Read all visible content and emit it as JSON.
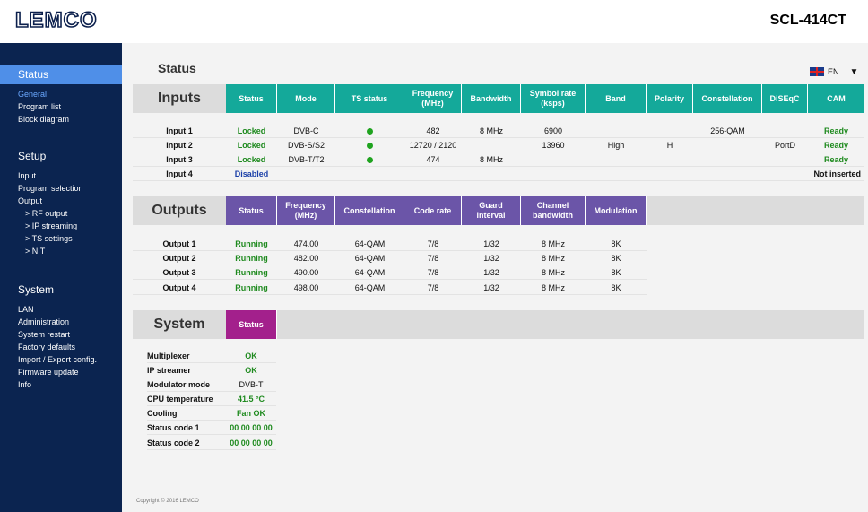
{
  "header": {
    "logo": "LEMCO",
    "model": "SCL-414CT"
  },
  "sidebar": {
    "status": {
      "title": "Status",
      "items": [
        "General",
        "Program list",
        "Block diagram"
      ]
    },
    "setup": {
      "title": "Setup",
      "items": [
        "Input",
        "Program selection",
        "Output"
      ],
      "subitems": [
        "> RF output",
        "> IP streaming",
        "> TS settings",
        "> NIT"
      ]
    },
    "system": {
      "title": "System",
      "items": [
        "LAN",
        "Administration",
        "System restart",
        "Factory defaults",
        "Import / Export config.",
        "Firmware update",
        "Info"
      ]
    }
  },
  "page": {
    "title": "Status",
    "language": "EN"
  },
  "inputs": {
    "title": "Inputs",
    "headers": [
      "Status",
      "Mode",
      "TS status",
      "Frequency\n(MHz)",
      "Bandwidth",
      "Symbol rate\n(ksps)",
      "Band",
      "Polarity",
      "Constellation",
      "DiSEqC",
      "CAM"
    ],
    "rows": [
      {
        "name": "Input 1",
        "status": "Locked",
        "mode": "DVB-C",
        "freq": "482",
        "bw": "8 MHz",
        "sr": "6900",
        "band": "",
        "pol": "",
        "const": "256-QAM",
        "diseqc": "",
        "cam": "Ready"
      },
      {
        "name": "Input 2",
        "status": "Locked",
        "mode": "DVB-S/S2",
        "freq": "12720 / 2120",
        "bw": "",
        "sr": "13960",
        "band": "High",
        "pol": "H",
        "const": "",
        "diseqc": "PortD",
        "cam": "Ready"
      },
      {
        "name": "Input 3",
        "status": "Locked",
        "mode": "DVB-T/T2",
        "freq": "474",
        "bw": "8 MHz",
        "sr": "",
        "band": "",
        "pol": "",
        "const": "",
        "diseqc": "",
        "cam": "Ready"
      },
      {
        "name": "Input 4",
        "status": "Disabled",
        "mode": "",
        "freq": "",
        "bw": "",
        "sr": "",
        "band": "",
        "pol": "",
        "const": "",
        "diseqc": "",
        "cam": "Not inserted"
      }
    ]
  },
  "outputs": {
    "title": "Outputs",
    "headers": [
      "Status",
      "Frequency\n(MHz)",
      "Constellation",
      "Code rate",
      "Guard\ninterval",
      "Channel\nbandwidth",
      "Modulation"
    ],
    "rows": [
      {
        "name": "Output 1",
        "status": "Running",
        "freq": "474.00",
        "const": "64-QAM",
        "cr": "7/8",
        "gi": "1/32",
        "bw": "8 MHz",
        "mod": "8K"
      },
      {
        "name": "Output 2",
        "status": "Running",
        "freq": "482.00",
        "const": "64-QAM",
        "cr": "7/8",
        "gi": "1/32",
        "bw": "8 MHz",
        "mod": "8K"
      },
      {
        "name": "Output 3",
        "status": "Running",
        "freq": "490.00",
        "const": "64-QAM",
        "cr": "7/8",
        "gi": "1/32",
        "bw": "8 MHz",
        "mod": "8K"
      },
      {
        "name": "Output 4",
        "status": "Running",
        "freq": "498.00",
        "const": "64-QAM",
        "cr": "7/8",
        "gi": "1/32",
        "bw": "8 MHz",
        "mod": "8K"
      }
    ]
  },
  "system": {
    "title": "System",
    "header": "Status",
    "rows": [
      {
        "label": "Multiplexer",
        "value": "OK"
      },
      {
        "label": "IP streamer",
        "value": "OK"
      },
      {
        "label": "Modulator mode",
        "value": "DVB-T"
      },
      {
        "label": "CPU temperature",
        "value": "41.5 °C"
      },
      {
        "label": "Cooling",
        "value": "Fan OK"
      },
      {
        "label": "Status code 1",
        "value": "00 00 00 00"
      },
      {
        "label": "Status code 2",
        "value": "00 00 00 00"
      }
    ]
  },
  "footer": "Copyright © 2016 LEMCO",
  "colors": {
    "sidebar": "#0b2450",
    "sidebar_active": "#4f8fe8",
    "inputs_header": "#14a99a",
    "outputs_header": "#6b55a8",
    "system_header": "#a3208c",
    "ok_green": "#1e8a1e",
    "disabled_blue": "#1a3fa8"
  }
}
